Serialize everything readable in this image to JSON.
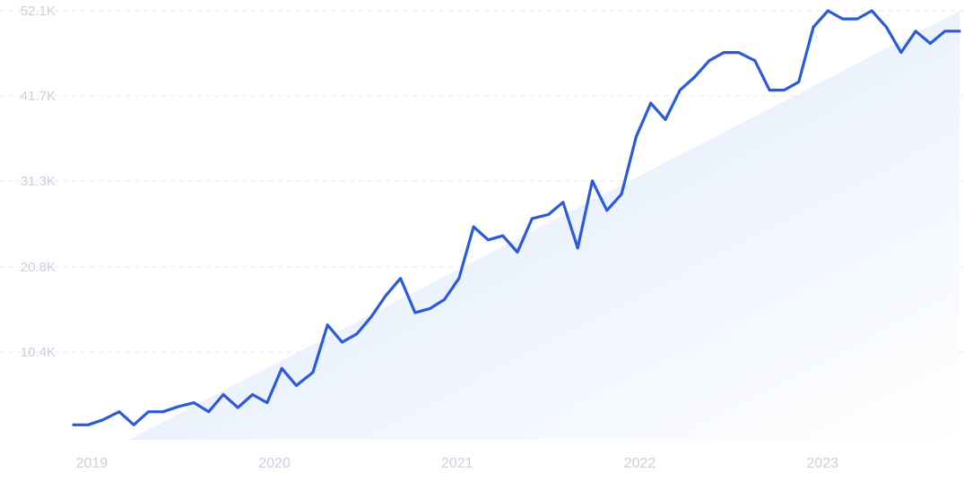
{
  "chart_data": {
    "type": "area",
    "title": "",
    "xlabel": "",
    "ylabel": "",
    "grid": true,
    "legend": "none",
    "colors": {
      "line": "#2b5bd7",
      "fill_top": "#dde9fb",
      "fill_bottom": "#ffffff",
      "tick_text": "#c9cfe0",
      "grid": "#e6e9f2"
    },
    "ylim": [
      0,
      52100
    ],
    "yticks": [
      10400,
      20800,
      31300,
      41700,
      52100
    ],
    "ytick_labels": [
      "10.4K",
      "20.8K",
      "31.3K",
      "41.7K",
      "52.1K"
    ],
    "xlim": [
      2018.9,
      2023.75
    ],
    "xticks": [
      2019,
      2020,
      2021,
      2022,
      2023
    ],
    "xtick_labels": [
      "2019",
      "2020",
      "2021",
      "2022",
      "2023"
    ],
    "trend": {
      "x": [
        2019.2,
        2023.75
      ],
      "y": [
        0,
        52100
      ]
    },
    "series": [
      {
        "x": [
          2018.9,
          2018.98,
          2019.06,
          2019.15,
          2019.23,
          2019.31,
          2019.39,
          2019.47,
          2019.56,
          2019.64,
          2019.72,
          2019.8,
          2019.88,
          2019.96,
          2020.04,
          2020.12,
          2020.21,
          2020.29,
          2020.37,
          2020.45,
          2020.53,
          2020.61,
          2020.69,
          2020.77,
          2020.85,
          2020.93,
          2021.01,
          2021.09,
          2021.17,
          2021.25,
          2021.33,
          2021.41,
          2021.5,
          2021.58,
          2021.66,
          2021.74,
          2021.82,
          2021.9,
          2021.98,
          2022.06,
          2022.14,
          2022.22,
          2022.3,
          2022.38,
          2022.46,
          2022.54,
          2022.63,
          2022.71,
          2022.79,
          2022.87,
          2022.95,
          2023.03,
          2023.11,
          2023.19,
          2023.27,
          2023.35,
          2023.43,
          2023.51,
          2023.59,
          2023.67,
          2023.75
        ],
        "values": [
          1500,
          1500,
          2100,
          3100,
          1500,
          3100,
          3100,
          3700,
          4200,
          3100,
          5200,
          3600,
          5200,
          4200,
          8400,
          6300,
          7900,
          13700,
          11600,
          12600,
          14700,
          17300,
          19400,
          15200,
          15700,
          16800,
          19400,
          25700,
          24100,
          24600,
          22600,
          26700,
          27200,
          28700,
          23100,
          31300,
          27700,
          29700,
          36700,
          40800,
          38800,
          42400,
          44000,
          46000,
          47000,
          47000,
          46000,
          42400,
          42400,
          43400,
          50100,
          52100,
          51100,
          51100,
          52100,
          50100,
          47000,
          49600,
          48100,
          49600,
          49600
        ]
      }
    ]
  }
}
